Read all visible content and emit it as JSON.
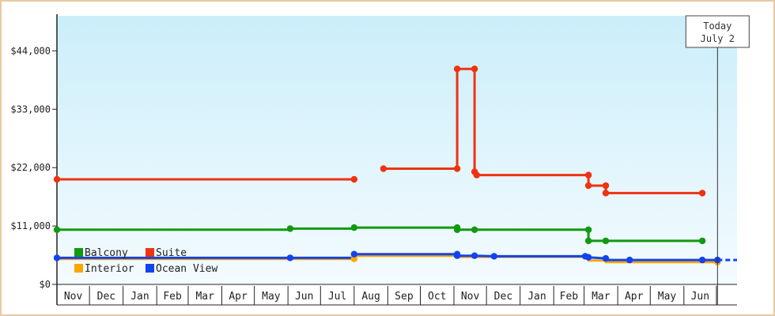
{
  "chart_data": {
    "type": "line",
    "step": true,
    "title": "",
    "xlabel": "",
    "ylabel": "",
    "ylim": [
      0,
      50600
    ],
    "y_ticks": [
      0,
      11000,
      22000,
      33000,
      44000
    ],
    "y_tick_labels": [
      "$0",
      "$11,000",
      "$22,000",
      "$33,000",
      "$44,000"
    ],
    "x_start": "2023-11-01",
    "x_end": "2025-07-20",
    "x_tick_labels": [
      "Nov",
      "Dec",
      "Jan",
      "Feb",
      "Mar",
      "Apr",
      "May",
      "Jun",
      "Jul",
      "Aug",
      "Sep",
      "Oct",
      "Nov",
      "Dec",
      "Jan",
      "Feb",
      "Mar",
      "Apr",
      "May",
      "Jun"
    ],
    "today_marker": {
      "date": "2025-07-02",
      "label_line1": "Today",
      "label_line2": "July 2"
    },
    "legend": [
      {
        "name": "Balcony",
        "color": "#119911"
      },
      {
        "name": "Suite",
        "color": "#ee3311"
      },
      {
        "name": "Interior",
        "color": "#ffa500"
      },
      {
        "name": "Ocean View",
        "color": "#1144ee"
      }
    ],
    "series": [
      {
        "name": "Suite",
        "color": "#ee3311",
        "segments": [
          [
            [
              "2023-11-01",
              19800
            ],
            [
              "2024-08-01",
              19800
            ]
          ],
          [
            [
              "2024-08-28",
              21800
            ],
            [
              "2024-11-04",
              21800
            ],
            [
              "2024-11-04",
              40600
            ],
            [
              "2024-11-20",
              40600
            ],
            [
              "2024-11-20",
              21200
            ],
            [
              "2024-11-22",
              20600
            ],
            [
              "2025-03-05",
              20600
            ],
            [
              "2025-03-05",
              18600
            ],
            [
              "2025-03-21",
              18600
            ],
            [
              "2025-03-21",
              17200
            ],
            [
              "2025-06-18",
              17200
            ]
          ]
        ],
        "markers": [
          [
            "2023-11-01",
            19800
          ],
          [
            "2024-08-01",
            19800
          ],
          [
            "2024-08-28",
            21800
          ],
          [
            "2024-11-04",
            21800
          ],
          [
            "2024-11-04",
            40600
          ],
          [
            "2024-11-20",
            40600
          ],
          [
            "2024-11-20",
            21200
          ],
          [
            "2024-11-22",
            20600
          ],
          [
            "2025-03-05",
            20600
          ],
          [
            "2025-03-05",
            18600
          ],
          [
            "2025-03-21",
            18600
          ],
          [
            "2025-03-21",
            17200
          ],
          [
            "2025-06-18",
            17200
          ]
        ]
      },
      {
        "name": "Balcony",
        "color": "#119911",
        "segments": [
          [
            [
              "2023-11-01",
              10300
            ],
            [
              "2024-06-03",
              10300
            ],
            [
              "2024-06-03",
              10500
            ],
            [
              "2024-08-01",
              10500
            ],
            [
              "2024-08-01",
              10700
            ],
            [
              "2024-11-04",
              10700
            ],
            [
              "2024-11-04",
              10300
            ],
            [
              "2025-03-05",
              10300
            ],
            [
              "2025-03-05",
              8200
            ],
            [
              "2025-03-21",
              8200
            ],
            [
              "2025-06-18",
              8200
            ]
          ]
        ],
        "markers": [
          [
            "2023-11-01",
            10300
          ],
          [
            "2024-06-03",
            10500
          ],
          [
            "2024-08-01",
            10700
          ],
          [
            "2024-11-04",
            10700
          ],
          [
            "2024-11-04",
            10300
          ],
          [
            "2024-11-20",
            10300
          ],
          [
            "2025-03-05",
            10300
          ],
          [
            "2025-03-05",
            8200
          ],
          [
            "2025-03-21",
            8200
          ],
          [
            "2025-06-18",
            8200
          ]
        ]
      },
      {
        "name": "Interior",
        "color": "#ffa500",
        "segments": [
          [
            [
              "2023-11-01",
              4800
            ],
            [
              "2024-08-01",
              4800
            ],
            [
              "2024-08-01",
              5400
            ],
            [
              "2024-11-04",
              5400
            ],
            [
              "2024-11-04",
              5200
            ],
            [
              "2025-03-05",
              5200
            ],
            [
              "2025-03-05",
              4500
            ],
            [
              "2025-03-21",
              4500
            ],
            [
              "2025-03-21",
              4200
            ],
            [
              "2025-07-02",
              4200
            ]
          ]
        ],
        "markers": [
          [
            "2024-08-01",
            4800
          ],
          [
            "2025-07-02",
            4200
          ]
        ]
      },
      {
        "name": "Ocean View",
        "color": "#1144ee",
        "segments": [
          [
            [
              "2023-11-01",
              5000
            ],
            [
              "2024-06-03",
              5000
            ],
            [
              "2024-08-01",
              5000
            ],
            [
              "2024-08-01",
              5700
            ],
            [
              "2024-11-04",
              5700
            ],
            [
              "2024-11-04",
              5400
            ],
            [
              "2024-11-20",
              5400
            ],
            [
              "2024-12-08",
              5300
            ],
            [
              "2025-03-02",
              5300
            ],
            [
              "2025-03-05",
              5100
            ],
            [
              "2025-03-21",
              4900
            ],
            [
              "2025-03-21",
              4600
            ],
            [
              "2025-07-02",
              4600
            ]
          ]
        ],
        "dashed_extension": [
          [
            "2025-07-02",
            4600
          ],
          [
            "2025-07-20",
            4600
          ]
        ],
        "markers": [
          [
            "2023-11-01",
            5000
          ],
          [
            "2024-06-03",
            5000
          ],
          [
            "2024-08-01",
            5700
          ],
          [
            "2024-11-04",
            5700
          ],
          [
            "2024-11-04",
            5400
          ],
          [
            "2024-11-20",
            5400
          ],
          [
            "2024-12-08",
            5300
          ],
          [
            "2025-03-02",
            5300
          ],
          [
            "2025-03-05",
            5100
          ],
          [
            "2025-03-21",
            4900
          ],
          [
            "2025-04-12",
            4600
          ],
          [
            "2025-06-18",
            4600
          ],
          [
            "2025-07-02",
            4600
          ]
        ]
      }
    ]
  }
}
